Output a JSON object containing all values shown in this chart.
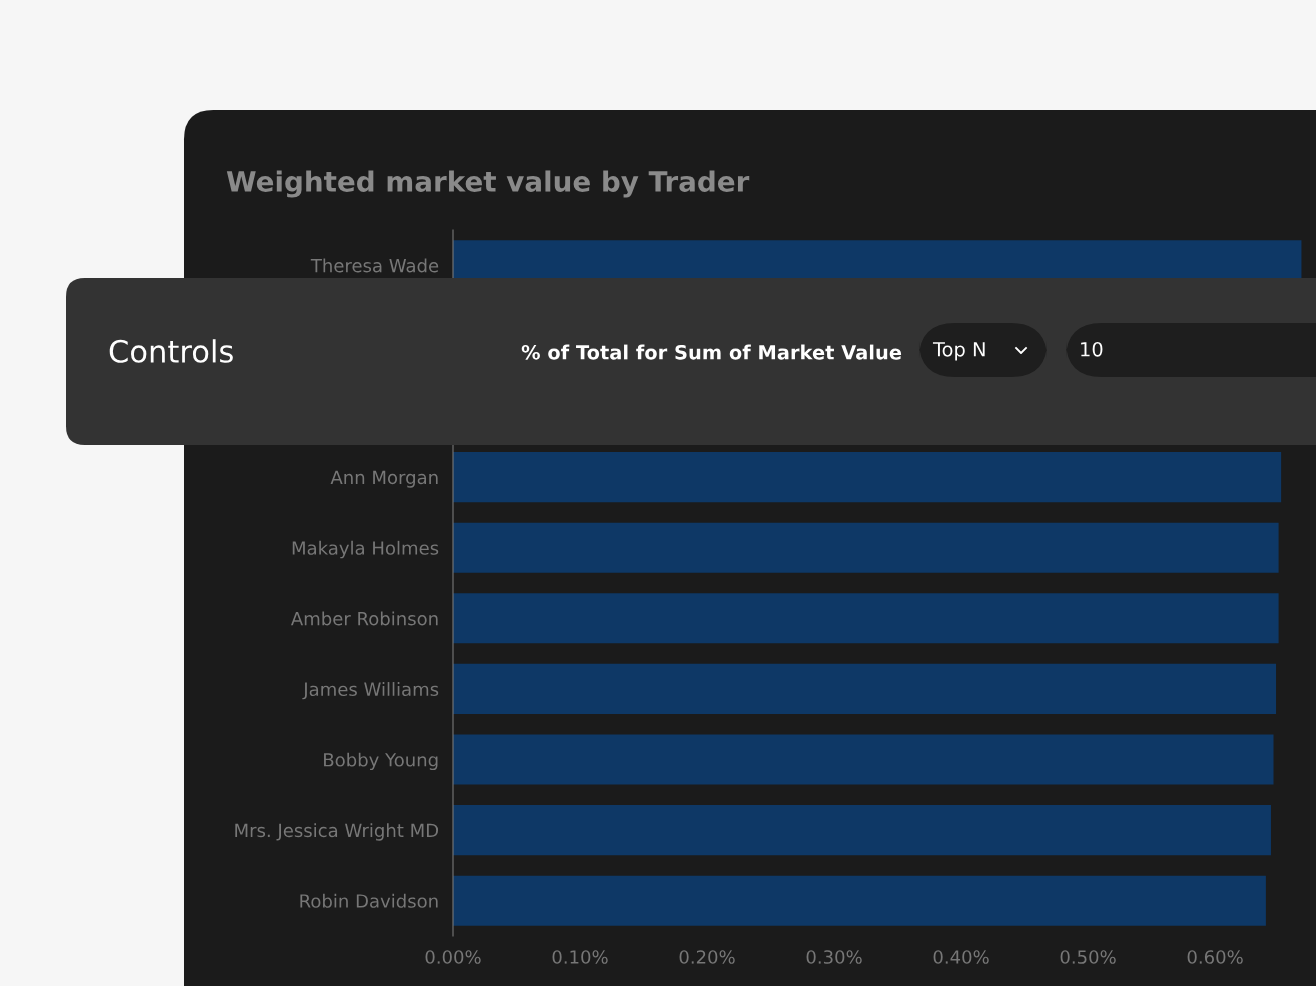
{
  "chart_data": [
    {
      "type": "bar",
      "title": "Weighted market value by Trader",
      "orientation": "horizontal",
      "categories": [
        "Theresa Wade",
        null,
        null,
        "Ann Morgan",
        "Makayla Holmes",
        "Amber Robinson",
        "James Williams",
        "Bobby Young",
        "Mrs. Jessica Wright MD",
        "Robin Davidson"
      ],
      "values": [
        0.668,
        null,
        null,
        0.652,
        0.65,
        0.65,
        0.648,
        0.646,
        0.644,
        0.64
      ],
      "color": "#0e3866",
      "xlim": [
        0,
        0.67
      ],
      "xticks": [
        {
          "value": 0,
          "label": "0.00%"
        },
        {
          "value": 0.1,
          "label": "0.10%"
        },
        {
          "value": 0.2,
          "label": "0.20%"
        },
        {
          "value": 0.3,
          "label": "0.30%"
        },
        {
          "value": 0.4,
          "label": "0.40%"
        },
        {
          "value": 0.5,
          "label": "0.50%"
        },
        {
          "value": 0.6,
          "label": "0.60%"
        }
      ]
    },
    {
      "type": "other",
      "title": "Controls",
      "annotations": [
        "% of Total for Sum of Market Value",
        "Top N",
        "10"
      ]
    }
  ]
}
